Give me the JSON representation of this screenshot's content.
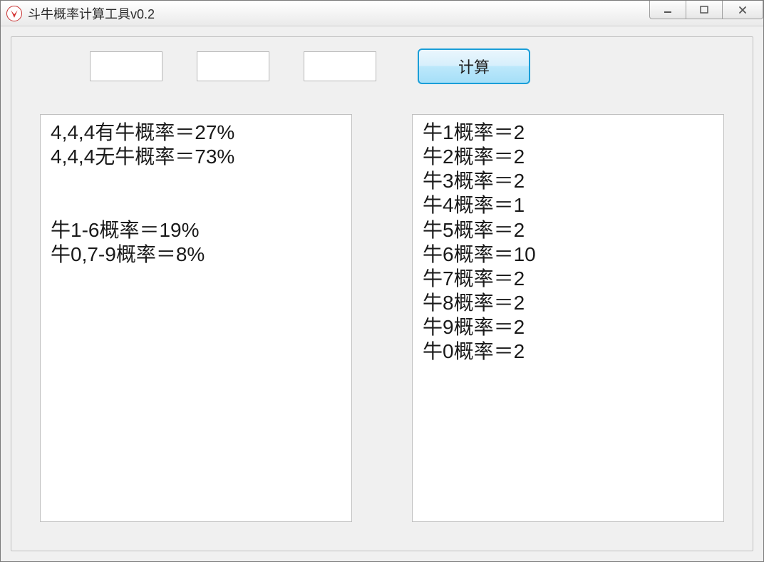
{
  "window": {
    "title": "斗牛概率计算工具v0.2"
  },
  "inputs": {
    "card1": "",
    "card2": "",
    "card3": ""
  },
  "button": {
    "calculate_label": "计算"
  },
  "colors": {
    "window_bg": "#f0f0f0",
    "panel_bg": "#ffffff",
    "border": "#c0c0c0",
    "button_border": "#1a9ed8",
    "button_grad_top": "#eaf6fd",
    "button_grad_bottom": "#a6dff8",
    "text": "#1a1a1a",
    "icon_red": "#d32f2f"
  },
  "left_output": {
    "lines": [
      "4,4,4有牛概率＝27%",
      "4,4,4无牛概率＝73%",
      "",
      "",
      "牛1-6概率＝19%",
      "牛0,7-9概率＝8%"
    ]
  },
  "right_output": {
    "lines": [
      "牛1概率＝2",
      "牛2概率＝2",
      "牛3概率＝2",
      "牛4概率＝1",
      "牛5概率＝2",
      "牛6概率＝10",
      "牛7概率＝2",
      "牛8概率＝2",
      "牛9概率＝2",
      "牛0概率＝2"
    ]
  },
  "typography": {
    "title_fontsize": 18,
    "output_fontsize": 28,
    "button_fontsize": 22
  }
}
